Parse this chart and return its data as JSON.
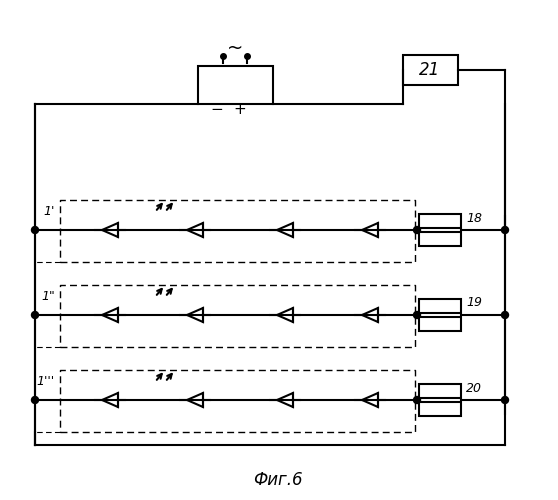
{
  "background_color": "#ffffff",
  "line_color": "#000000",
  "title": "Фиг. 6",
  "lw": 1.5,
  "figsize": [
    5.58,
    5.0
  ],
  "dpi": 100
}
